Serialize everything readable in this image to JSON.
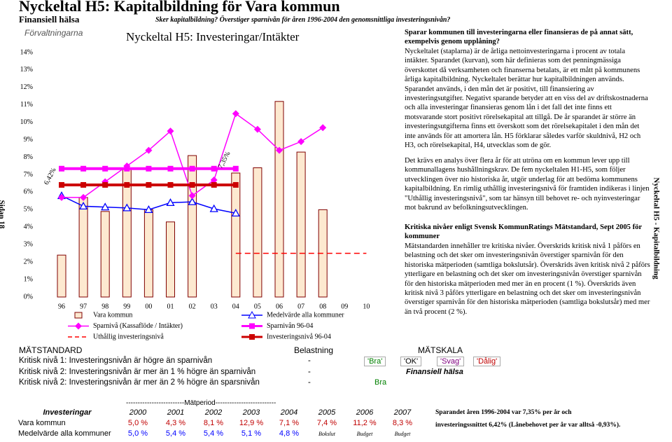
{
  "header": {
    "title": "Nyckeltal H5: Kapitalbildning för Vara kommun",
    "section": "Finansiell hälsa",
    "question": "Sker kapitalbildning? Överstiger sparnivån för åren 1996-2004 den genomsnittliga investeringsnivån?"
  },
  "side": {
    "left": "Sidan 18",
    "right": "Nyckeltal H5 - Kapitalbildning"
  },
  "chart_data": {
    "type": "combo",
    "label": "Förvaltningarna",
    "title": "Nyckeltal H5: Investeringar/Intäkter",
    "categories": [
      "96",
      "97",
      "98",
      "99",
      "00",
      "01",
      "02",
      "03",
      "04",
      "05",
      "06",
      "07",
      "08",
      "09",
      "10"
    ],
    "ylim": [
      0,
      14
    ],
    "yticks": [
      {
        "value": 0,
        "label": "0%"
      },
      {
        "value": 1,
        "label": "1%"
      },
      {
        "value": 2,
        "label": "2%"
      },
      {
        "value": 3,
        "label": "3%"
      },
      {
        "value": 4,
        "label": "4%"
      },
      {
        "value": 5,
        "label": "5%"
      },
      {
        "value": 6,
        "label": "6%"
      },
      {
        "value": 7,
        "label": "7%"
      },
      {
        "value": 8,
        "label": "8%"
      },
      {
        "value": 9,
        "label": "9%"
      },
      {
        "value": 10,
        "label": "10%"
      },
      {
        "value": 11,
        "label": "11%"
      },
      {
        "value": 12,
        "label": "12%"
      },
      {
        "value": 13,
        "label": "13%"
      },
      {
        "value": 14,
        "label": "14%"
      }
    ],
    "series": [
      {
        "name": "Vara kommun",
        "kind": "bar",
        "color": "#fde9d0",
        "values": [
          2.4,
          5.7,
          4.9,
          7.4,
          5.0,
          4.3,
          8.1,
          null,
          7.1,
          7.4,
          11.2,
          8.3,
          5.0,
          null,
          null
        ]
      },
      {
        "name": "Medelvärde alla kommuner",
        "kind": "line",
        "marker": "triangle",
        "color": "#0000ff",
        "values": [
          5.8,
          5.2,
          5.15,
          5.1,
          5.0,
          5.4,
          5.45,
          5.05,
          4.8,
          null,
          null,
          null,
          null,
          null,
          null
        ]
      },
      {
        "name": "Sparnivå (Kassaflöde / Intäkter)",
        "kind": "line",
        "marker": "diamond",
        "color": "#ff00ff",
        "values": [
          5.7,
          5.7,
          6.6,
          7.5,
          8.4,
          9.5,
          5.8,
          6.7,
          10.5,
          9.6,
          8.4,
          8.9,
          9.7,
          null,
          null
        ]
      },
      {
        "name": "Sparnivån 96-04",
        "kind": "line",
        "marker": "square",
        "thick": true,
        "color": "#ff00ff",
        "values": [
          7.35,
          7.35,
          7.35,
          7.35,
          7.35,
          7.35,
          7.35,
          7.35,
          7.35,
          null,
          null,
          null,
          null,
          null,
          null
        ]
      },
      {
        "name": "Uthållig investeringsnivå",
        "kind": "line",
        "marker": "none",
        "dashed": true,
        "color": "#ff0000",
        "values": [
          null,
          null,
          null,
          null,
          null,
          null,
          null,
          null,
          2.5,
          2.5,
          2.5,
          2.5,
          2.5,
          2.5,
          2.5
        ]
      },
      {
        "name": "Investeringsnivå 96-04",
        "kind": "line",
        "marker": "square",
        "thick": true,
        "color": "#cc0000",
        "values": [
          6.42,
          6.42,
          6.42,
          6.42,
          6.42,
          6.42,
          6.42,
          6.42,
          6.42,
          null,
          null,
          null,
          null,
          null,
          null
        ]
      }
    ],
    "annotations": [
      {
        "text": "6,42%",
        "x": "96",
        "y": 6.42
      },
      {
        "text": "7,35%",
        "x": "04",
        "y": 7.35
      }
    ]
  },
  "text": {
    "heading1": "Sparar kommunen till investeringarna eller finansieras de på annat sätt, exempelvis genom upplåning?",
    "body1": "Nyckeltalet (staplarna) är de årliga nettoinvesteringarna i procent av totala intäkter. Sparandet (kurvan), som här definieras som det penningmässiga överskottet då verksamheten och finanserna betalats, är ett mått på kommunens årliga kapitalbildning. Nyckeltalet berättar hur kapitalbildningen används. Sparandet används, i den mån det är positivt, till finansiering av investeringsutgifter. Negativt sparande betyder att en viss del av driftskostnaderna och alla investeringar finansieras genom lån i det fall det inte finns ett motsvarande stort positivt rörelsekapital att tillgå. De år sparandet är större än investeringsutgifterna finns ett överskott som det rörelsekapitalet i den mån det inte används för att amortera lån. H5 förklarar således varför skuldnivå, H2 och H3, och rörelsekapital, H4, utvecklas som de gör.",
    "body2": "Det krävs en analys över flera år för att utröna om en kommun lever upp till kommunallagens hushållningskrav. De fem nyckeltalen H1-H5, som följer utvecklingen över nio historiska år, utgör underlag för att bedöma kommunens kapitalbildning. En rimlig uthållig investeringsnivå för framtiden indikeras i linjen \"Uthållig investeringsnivå\", som tar hänsyn till behovet re- och nyinvesteringar mot bakrund av befolkningsutvecklingen.",
    "heading2": "Kritiska nivåer enligt Svensk KommunRatings Mätstandard, Sept 2005 för kommuner",
    "body3": "Mätstandarden innehåller tre kritiska nivåer. Överskrids kritisk nivå 1 påförs en belastning och det sker om investeringsnivån överstiger sparnivån för den historiska mätperioden (samtliga bokslutsår). Överskrids även kritisk nivå 2 påförs ytterligare en belastning och det sker om investeringsnivån överstiger sparnivån för den historiska mätperioden med mer än en procent (1 %). Överskrids även kritisk nivå 3 påförs ytterligare en belastning och det sker om investeringsnivån överstiger sparnivån för den historiska mätperioden (samtliga bokslutsår) med mer än två procent (2 %)."
  },
  "standard": {
    "title": "MÄTSTANDARD",
    "load_header": "Belastning",
    "scale_title": "MÄTSKALA",
    "rows": [
      [
        "Kritisk nivå 1: Investeringsnivån är högre än sparnivån",
        "-"
      ],
      [
        "Kritisk nivå 2: Investeringsnivån är mer än 1 % högre än sparnivån",
        "-"
      ],
      [
        "Kritisk nivå 2: Investeringsnivån är mer än 2 % högre än sparsnivån",
        "-"
      ]
    ],
    "scale": [
      "'Bra'",
      "'OK'",
      "'Svag'",
      "'Dålig'"
    ],
    "scale_label": "Finansiell hälsa",
    "result": "Bra"
  },
  "table": {
    "period": "-------------------------Mätperiod--------------------------",
    "columns": [
      "Investeringar",
      "2000",
      "2001",
      "2002",
      "2003",
      "2004",
      "2005",
      "2006",
      "2007"
    ],
    "rows": [
      [
        "Vara kommun",
        "5,0 %",
        "4,3 %",
        "8,1 %",
        "12,9 %",
        "7,1 %",
        "7,4 %",
        "11,2 %",
        "8,3 %"
      ],
      [
        "Medelvärde alla kommuner",
        "5,0 %",
        "5,4 %",
        "5,4 %",
        "5,1 %",
        "4,8 %",
        "Bokslut",
        "Budget",
        "Budget"
      ]
    ]
  },
  "note": {
    "line1": "Sparandet åren 1996-2004 var 7,35% per år och",
    "line2": "investeringssnittet 6,42% (Lånebehovet per år var alltså -0,93%)."
  }
}
